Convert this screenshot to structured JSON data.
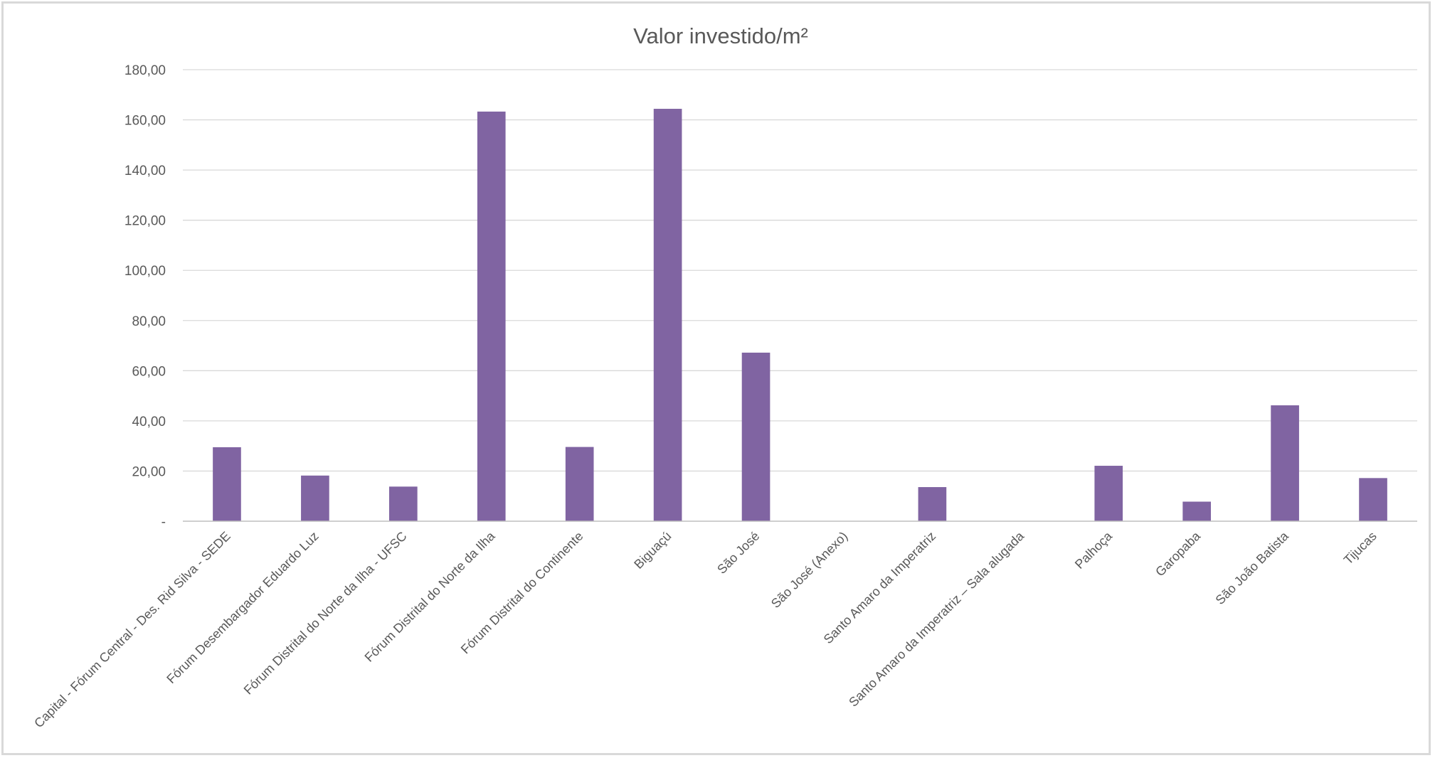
{
  "chart_data": {
    "type": "bar",
    "title": "Valor investido/m²",
    "categories": [
      "Capital - Fórum Central - Des. Rid Silva - SEDE",
      "Fórum Desembargador Eduardo Luz",
      "Fórum Distrital do Norte da Ilha -  UFSC",
      "Fórum Distrital do Norte da Ilha",
      "Fórum Distrital do Continente",
      "Biguaçú",
      "São José",
      "São José (Anexo)",
      "Santo Amaro da Imperatriz",
      "Santo Amaro da Imperatriz – Sala alugada",
      "Palhoça",
      "Garopaba",
      "São João Batista",
      "Tijucas"
    ],
    "values": [
      29.5,
      18.2,
      13.8,
      163.3,
      29.6,
      164.4,
      67.2,
      0,
      13.6,
      0,
      22.1,
      7.8,
      46.2,
      17.2
    ],
    "ylim": [
      0,
      180
    ],
    "yticks": [
      {
        "value": 0,
        "label": "-"
      },
      {
        "value": 20,
        "label": "20,00"
      },
      {
        "value": 40,
        "label": "40,00"
      },
      {
        "value": 60,
        "label": "60,00"
      },
      {
        "value": 80,
        "label": "80,00"
      },
      {
        "value": 100,
        "label": "100,00"
      },
      {
        "value": 120,
        "label": "120,00"
      },
      {
        "value": 140,
        "label": "140,00"
      },
      {
        "value": 160,
        "label": "160,00"
      },
      {
        "value": 180,
        "label": "180,00"
      }
    ],
    "xlabel": "",
    "ylabel": "",
    "grid": true,
    "legend": "none",
    "bar_color": "#8064a2",
    "gridline_color": "#d9d9d9",
    "text_color": "#595959"
  }
}
